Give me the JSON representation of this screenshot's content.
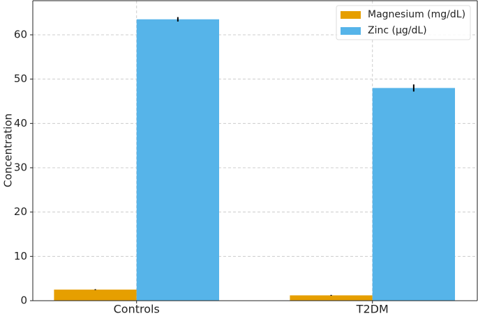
{
  "chart_data": {
    "type": "bar",
    "y_label": "Concentration",
    "categories": [
      "Controls",
      "T2DM"
    ],
    "series": [
      {
        "name": "Magnesium (mg/dL)",
        "color": "#E69F00",
        "values": [
          2.5,
          1.2
        ],
        "errors": [
          0.1,
          0.1
        ]
      },
      {
        "name": "Zinc (µg/dL)",
        "color": "#56B4E9",
        "values": [
          63.5,
          48.0
        ],
        "errors": [
          0.5,
          0.8
        ]
      }
    ],
    "ylim": [
      0,
      67.7
    ],
    "yticks": [
      0,
      10,
      20,
      30,
      40,
      50,
      60
    ],
    "grid": true,
    "legend": "upper right"
  }
}
